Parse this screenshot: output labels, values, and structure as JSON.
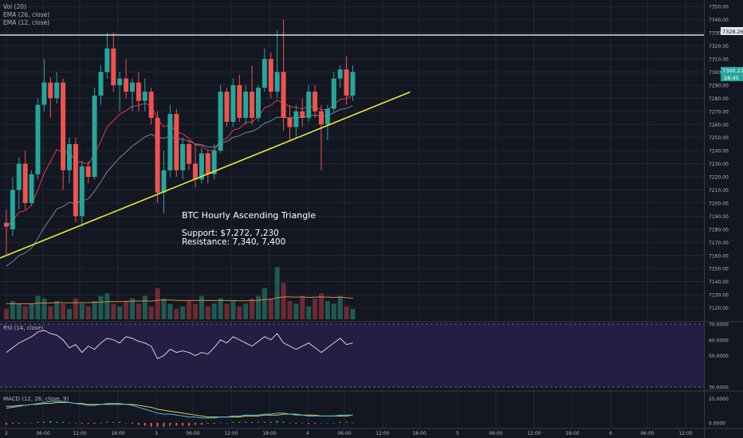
{
  "indicators": {
    "vol": "Vol (20)",
    "ema26": "EMA (26, close)",
    "ema12": "EMA (12, close)",
    "rsi": "RSI (14, close)",
    "macd": "MACD (12, 26, close, 9)"
  },
  "annotation": {
    "title": "BTC Hourly Ascending Triangle",
    "support": "Support: $7,272, 7,230",
    "resistance": "Resistance: 7,340, 7,400"
  },
  "price_badges": {
    "resistance_line": "7328.26",
    "last_price": "7300.21",
    "countdown": "28:45"
  },
  "colors": {
    "background": "#131722",
    "grid": "#2a2e39",
    "up": "#26a69a",
    "down": "#ef5350",
    "trendline": "#e8e83a",
    "ema26": "#788396",
    "ema12": "#e0394a",
    "vol_ma": "#d88a3a",
    "rsi_line": "#e6e6e6",
    "rsi_band": "#2a1e4a",
    "macd_line": "#4fb6e6",
    "signal_line": "#e5c84a",
    "text": "#b2b5be"
  },
  "chart_data": {
    "type": "candlestick",
    "title": "",
    "x_tick_labels": [
      "2",
      "06:00",
      "12:00",
      "18:00",
      "3",
      "06:00",
      "12:00",
      "18:00",
      "4",
      "06:00",
      "12:00",
      "18:00",
      "5",
      "06:00",
      "12:00",
      "18:00",
      "6",
      "06:00",
      "12:00"
    ],
    "price_axis": {
      "ylim": [
        7110,
        7355
      ],
      "ticks": [
        7120,
        7130,
        7140,
        7150,
        7160,
        7170,
        7180,
        7190,
        7200,
        7210,
        7220,
        7230,
        7240,
        7250,
        7260,
        7270,
        7280,
        7290,
        7300,
        7310,
        7320,
        7330,
        7340,
        7350
      ],
      "tick_labels": [
        "7120.00",
        "7130.00",
        "7140.00",
        "7150.00",
        "7160.00",
        "7170.00",
        "7180.00",
        "7190.00",
        "7200.00",
        "7210.00",
        "7220.00",
        "7230.00",
        "7240.00",
        "7250.00",
        "7260.00",
        "7270.00",
        "7280.00",
        "7290.00",
        "7300.00",
        "7310.00",
        "7320.00",
        "7330.00",
        "7340.00",
        "7350.00"
      ]
    },
    "resistance_level": 7328.26,
    "trendline": {
      "start_index": 0,
      "start_price": 7158,
      "end_index": 55,
      "end_price": 7286
    },
    "candles": [
      {
        "o": 7185,
        "h": 7195,
        "l": 7160,
        "c": 7182
      },
      {
        "o": 7180,
        "h": 7220,
        "l": 7175,
        "c": 7210
      },
      {
        "o": 7210,
        "h": 7235,
        "l": 7195,
        "c": 7230
      },
      {
        "o": 7230,
        "h": 7240,
        "l": 7195,
        "c": 7200
      },
      {
        "o": 7200,
        "h": 7225,
        "l": 7198,
        "c": 7222
      },
      {
        "o": 7222,
        "h": 7280,
        "l": 7218,
        "c": 7275
      },
      {
        "o": 7275,
        "h": 7310,
        "l": 7270,
        "c": 7292
      },
      {
        "o": 7292,
        "h": 7296,
        "l": 7265,
        "c": 7280
      },
      {
        "o": 7280,
        "h": 7300,
        "l": 7276,
        "c": 7292
      },
      {
        "o": 7292,
        "h": 7295,
        "l": 7210,
        "c": 7225
      },
      {
        "o": 7225,
        "h": 7250,
        "l": 7215,
        "c": 7245
      },
      {
        "o": 7245,
        "h": 7250,
        "l": 7185,
        "c": 7190
      },
      {
        "o": 7190,
        "h": 7232,
        "l": 7182,
        "c": 7228
      },
      {
        "o": 7228,
        "h": 7232,
        "l": 7215,
        "c": 7220
      },
      {
        "o": 7220,
        "h": 7288,
        "l": 7218,
        "c": 7282
      },
      {
        "o": 7282,
        "h": 7305,
        "l": 7275,
        "c": 7300
      },
      {
        "o": 7300,
        "h": 7330,
        "l": 7295,
        "c": 7318
      },
      {
        "o": 7318,
        "h": 7330,
        "l": 7285,
        "c": 7290
      },
      {
        "o": 7290,
        "h": 7300,
        "l": 7270,
        "c": 7295
      },
      {
        "o": 7295,
        "h": 7310,
        "l": 7280,
        "c": 7285
      },
      {
        "o": 7285,
        "h": 7295,
        "l": 7270,
        "c": 7292
      },
      {
        "o": 7292,
        "h": 7300,
        "l": 7270,
        "c": 7278
      },
      {
        "o": 7278,
        "h": 7295,
        "l": 7270,
        "c": 7285
      },
      {
        "o": 7285,
        "h": 7288,
        "l": 7260,
        "c": 7265
      },
      {
        "o": 7265,
        "h": 7270,
        "l": 7200,
        "c": 7208
      },
      {
        "o": 7208,
        "h": 7240,
        "l": 7192,
        "c": 7225
      },
      {
        "o": 7225,
        "h": 7275,
        "l": 7220,
        "c": 7268
      },
      {
        "o": 7268,
        "h": 7272,
        "l": 7220,
        "c": 7225
      },
      {
        "o": 7225,
        "h": 7250,
        "l": 7218,
        "c": 7245
      },
      {
        "o": 7245,
        "h": 7248,
        "l": 7225,
        "c": 7230
      },
      {
        "o": 7230,
        "h": 7245,
        "l": 7212,
        "c": 7218
      },
      {
        "o": 7218,
        "h": 7242,
        "l": 7215,
        "c": 7238
      },
      {
        "o": 7238,
        "h": 7240,
        "l": 7215,
        "c": 7222
      },
      {
        "o": 7222,
        "h": 7245,
        "l": 7218,
        "c": 7240
      },
      {
        "o": 7240,
        "h": 7290,
        "l": 7238,
        "c": 7285
      },
      {
        "o": 7285,
        "h": 7288,
        "l": 7258,
        "c": 7262
      },
      {
        "o": 7262,
        "h": 7295,
        "l": 7258,
        "c": 7290
      },
      {
        "o": 7290,
        "h": 7298,
        "l": 7262,
        "c": 7265
      },
      {
        "o": 7265,
        "h": 7290,
        "l": 7260,
        "c": 7285
      },
      {
        "o": 7285,
        "h": 7305,
        "l": 7260,
        "c": 7265
      },
      {
        "o": 7265,
        "h": 7290,
        "l": 7262,
        "c": 7288
      },
      {
        "o": 7288,
        "h": 7318,
        "l": 7285,
        "c": 7310
      },
      {
        "o": 7310,
        "h": 7315,
        "l": 7280,
        "c": 7285
      },
      {
        "o": 7285,
        "h": 7332,
        "l": 7280,
        "c": 7300
      },
      {
        "o": 7300,
        "h": 7340,
        "l": 7255,
        "c": 7265
      },
      {
        "o": 7265,
        "h": 7275,
        "l": 7248,
        "c": 7258
      },
      {
        "o": 7258,
        "h": 7275,
        "l": 7250,
        "c": 7270
      },
      {
        "o": 7270,
        "h": 7280,
        "l": 7258,
        "c": 7265
      },
      {
        "o": 7265,
        "h": 7290,
        "l": 7262,
        "c": 7285
      },
      {
        "o": 7285,
        "h": 7290,
        "l": 7265,
        "c": 7270
      },
      {
        "o": 7270,
        "h": 7275,
        "l": 7225,
        "c": 7260
      },
      {
        "o": 7260,
        "h": 7275,
        "l": 7248,
        "c": 7272
      },
      {
        "o": 7272,
        "h": 7300,
        "l": 7270,
        "c": 7295
      },
      {
        "o": 7295,
        "h": 7305,
        "l": 7288,
        "c": 7302
      },
      {
        "o": 7302,
        "h": 7312,
        "l": 7275,
        "c": 7282
      },
      {
        "o": 7282,
        "h": 7305,
        "l": 7278,
        "c": 7300
      }
    ],
    "volume": {
      "values": [
        4,
        7,
        6,
        5,
        6,
        9,
        8,
        5,
        7,
        6,
        4,
        8,
        6,
        5,
        7,
        9,
        10,
        6,
        5,
        7,
        8,
        6,
        9,
        5,
        12,
        8,
        6,
        4,
        5,
        7,
        6,
        9,
        5,
        6,
        8,
        6,
        7,
        5,
        6,
        8,
        9,
        12,
        8,
        20,
        14,
        7,
        6,
        9,
        5,
        8,
        10,
        7,
        6,
        9,
        5,
        4
      ],
      "ma": [
        6,
        6,
        6,
        6,
        6,
        6.2,
        6.3,
        6.3,
        6.4,
        6.4,
        6.3,
        6.4,
        6.4,
        6.4,
        6.5,
        6.6,
        6.8,
        6.8,
        6.8,
        6.9,
        7,
        7,
        7.1,
        7,
        7.3,
        7.4,
        7.4,
        7.3,
        7.2,
        7.2,
        7.2,
        7.3,
        7.2,
        7.2,
        7.3,
        7.2,
        7.2,
        7.1,
        7.1,
        7.2,
        7.3,
        7.6,
        7.7,
        8.3,
        8.6,
        8.6,
        8.5,
        8.6,
        8.4,
        8.5,
        8.6,
        8.5,
        8.4,
        8.5,
        8.3,
        8.1
      ]
    },
    "rsi": {
      "range": [
        30,
        70
      ],
      "ticks": [
        30,
        50,
        60,
        70
      ],
      "tick_labels": [
        "30.0000",
        "50.0000",
        "60.0000",
        "70.0000"
      ],
      "values": [
        52,
        55,
        58,
        60,
        62,
        65,
        66,
        64,
        63,
        60,
        55,
        57,
        52,
        56,
        54,
        58,
        61,
        60,
        58,
        62,
        61,
        59,
        58,
        56,
        48,
        50,
        54,
        52,
        53,
        52,
        50,
        52,
        51,
        55,
        60,
        58,
        62,
        60,
        58,
        56,
        59,
        62,
        60,
        64,
        58,
        56,
        54,
        56,
        58,
        55,
        52,
        55,
        58,
        61,
        57,
        58
      ]
    },
    "macd": {
      "ylim": [
        -5,
        32
      ],
      "ticks": [
        0,
        25
      ],
      "tick_labels": [
        "0.0000",
        "25.0000"
      ],
      "macd": [
        15,
        16,
        17,
        18,
        19,
        20,
        21,
        22,
        22,
        22,
        21,
        20,
        19,
        18,
        18,
        19,
        20,
        20,
        20,
        19,
        18,
        16,
        14,
        12,
        10,
        9,
        9,
        8,
        7,
        6,
        6,
        5,
        5,
        5,
        6,
        6,
        7,
        7,
        8,
        8,
        8,
        9,
        9,
        10,
        10,
        9,
        8,
        8,
        7,
        7,
        7,
        7,
        7,
        8,
        8,
        8
      ],
      "signal": [
        17,
        17,
        18,
        18,
        19,
        19,
        20,
        20,
        21,
        21,
        21,
        20,
        20,
        19,
        19,
        19,
        19,
        19,
        19,
        19,
        19,
        18,
        17,
        16,
        14,
        13,
        12,
        11,
        10,
        9,
        8,
        7,
        6,
        6,
        6,
        6,
        6,
        6,
        7,
        7,
        7,
        8,
        8,
        8,
        9,
        9,
        9,
        8,
        8,
        8,
        7,
        7,
        7,
        7,
        7,
        8
      ],
      "histogram": [
        -2,
        -1,
        -1,
        0,
        0,
        1,
        1,
        2,
        1,
        1,
        0,
        0,
        -1,
        -1,
        -1,
        0,
        1,
        1,
        1,
        0,
        -1,
        -2,
        -3,
        -4,
        -4,
        -4,
        -3,
        -3,
        -3,
        -3,
        -2,
        -2,
        -1,
        -1,
        0,
        0,
        1,
        1,
        1,
        1,
        1,
        1,
        1,
        2,
        1,
        0,
        -1,
        0,
        -1,
        -1,
        0,
        0,
        0,
        1,
        1,
        0
      ]
    }
  }
}
